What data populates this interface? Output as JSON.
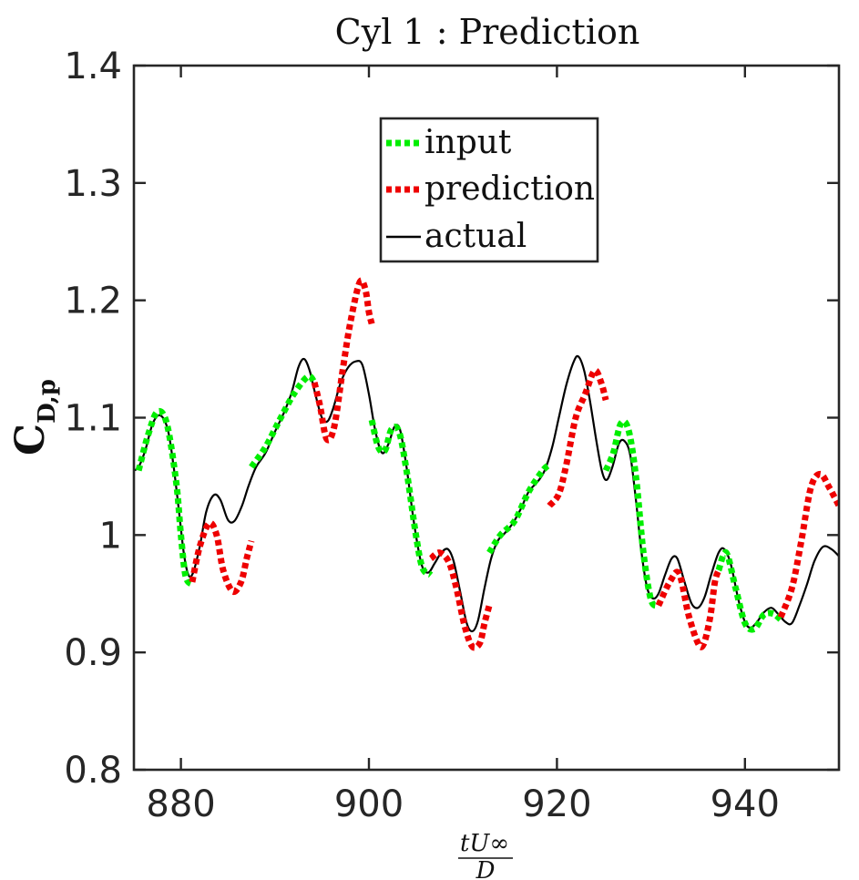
{
  "chart_data": {
    "type": "line",
    "title": "Cyl 1 : Prediction",
    "xlabel_numerator": "tU∞",
    "xlabel_denominator": "D",
    "ylabel_main": "C",
    "ylabel_sub": "D,p",
    "xlim": [
      875,
      950
    ],
    "ylim": [
      0.8,
      1.4
    ],
    "x_ticks": [
      880,
      900,
      920,
      940
    ],
    "x_tick_labels": [
      "880",
      "900",
      "920",
      "940"
    ],
    "y_ticks": [
      0.8,
      0.9,
      1.0,
      1.1,
      1.2,
      1.3,
      1.4
    ],
    "y_tick_labels": [
      "0.8",
      "0.9",
      "1",
      "1.1",
      "1.2",
      "1.3",
      "1.4"
    ],
    "legend_position": "top-center",
    "colors": {
      "input": "#00ee00",
      "prediction": "#ee0000",
      "actual": "#000000"
    },
    "series": [
      {
        "name": "input",
        "style": "dotted",
        "segments": [
          [
            [
              875.5,
              1.055
            ],
            [
              876.5,
              1.085
            ],
            [
              877.5,
              1.105
            ],
            [
              878.5,
              1.095
            ],
            [
              879.5,
              1.045
            ],
            [
              880,
              1.0
            ],
            [
              880.5,
              0.965
            ],
            [
              881.2,
              0.958
            ]
          ],
          [
            [
              887.5,
              1.058
            ],
            [
              889,
              1.075
            ],
            [
              890.5,
              1.098
            ],
            [
              892,
              1.12
            ],
            [
              893.5,
              1.135
            ],
            [
              894.2,
              1.13
            ]
          ],
          [
            [
              900.3,
              1.098
            ],
            [
              901,
              1.075
            ],
            [
              901.7,
              1.072
            ],
            [
              902.4,
              1.09
            ],
            [
              903.2,
              1.088
            ],
            [
              904,
              1.055
            ],
            [
              905,
              1.0
            ],
            [
              905.7,
              0.972
            ],
            [
              906.6,
              0.966
            ]
          ],
          [
            [
              912.8,
              0.985
            ],
            [
              914,
              1.0
            ],
            [
              915.5,
              1.012
            ],
            [
              917,
              1.037
            ],
            [
              918.5,
              1.055
            ],
            [
              919.2,
              1.06
            ]
          ],
          [
            [
              925.2,
              1.055
            ],
            [
              926,
              1.07
            ],
            [
              926.8,
              1.095
            ],
            [
              927.6,
              1.09
            ],
            [
              928.4,
              1.05
            ],
            [
              929.2,
              0.985
            ],
            [
              930,
              0.945
            ],
            [
              930.8,
              0.94
            ]
          ],
          [
            [
              937.2,
              0.97
            ],
            [
              938,
              0.985
            ],
            [
              939,
              0.955
            ],
            [
              940,
              0.925
            ],
            [
              941,
              0.92
            ],
            [
              942,
              0.932
            ],
            [
              943,
              0.933
            ],
            [
              943.8,
              0.928
            ]
          ]
        ]
      },
      {
        "name": "prediction",
        "style": "dotted",
        "segments": [
          [
            [
              881.2,
              0.96
            ],
            [
              882,
              0.99
            ],
            [
              883,
              1.01
            ],
            [
              883.8,
              1.0
            ],
            [
              884.5,
              0.97
            ],
            [
              885.5,
              0.952
            ],
            [
              886.4,
              0.96
            ],
            [
              887,
              0.98
            ],
            [
              887.5,
              0.995
            ]
          ],
          [
            [
              894.2,
              1.13
            ],
            [
              894.8,
              1.11
            ],
            [
              895.5,
              1.082
            ],
            [
              896.3,
              1.092
            ],
            [
              897.2,
              1.14
            ],
            [
              898,
              1.18
            ],
            [
              899,
              1.215
            ],
            [
              899.6,
              1.21
            ],
            [
              900,
              1.19
            ],
            [
              900.3,
              1.18
            ]
          ],
          [
            [
              906.6,
              0.98
            ],
            [
              907.5,
              0.985
            ],
            [
              908.5,
              0.977
            ],
            [
              909.3,
              0.955
            ],
            [
              910.2,
              0.922
            ],
            [
              911,
              0.905
            ],
            [
              911.8,
              0.908
            ],
            [
              912.3,
              0.925
            ],
            [
              912.8,
              0.94
            ]
          ],
          [
            [
              919.2,
              1.025
            ],
            [
              920.2,
              1.035
            ],
            [
              921,
              1.06
            ],
            [
              922,
              1.1
            ],
            [
              923,
              1.12
            ],
            [
              924,
              1.14
            ],
            [
              924.7,
              1.13
            ],
            [
              925.2,
              1.115
            ]
          ],
          [
            [
              930.8,
              0.94
            ],
            [
              932,
              0.96
            ],
            [
              933,
              0.967
            ],
            [
              934,
              0.932
            ],
            [
              935,
              0.908
            ],
            [
              935.6,
              0.907
            ],
            [
              936.3,
              0.93
            ],
            [
              936.8,
              0.96
            ],
            [
              937.2,
              0.97
            ]
          ],
          [
            [
              943.8,
              0.93
            ],
            [
              945,
              0.955
            ],
            [
              946,
              0.995
            ],
            [
              947,
              1.04
            ],
            [
              948,
              1.052
            ],
            [
              949,
              1.04
            ],
            [
              950,
              1.025
            ]
          ]
        ]
      },
      {
        "name": "actual",
        "style": "solid",
        "segments": [
          [
            [
              875,
              1.055
            ],
            [
              875.5,
              1.058
            ],
            [
              876.2,
              1.072
            ],
            [
              877,
              1.095
            ],
            [
              877.8,
              1.102
            ],
            [
              878.6,
              1.09
            ],
            [
              879.2,
              1.06
            ],
            [
              879.8,
              1.02
            ],
            [
              880.3,
              0.985
            ],
            [
              880.8,
              0.966
            ],
            [
              881.3,
              0.968
            ],
            [
              882,
              0.99
            ],
            [
              882.7,
              1.02
            ],
            [
              883.5,
              1.034
            ],
            [
              884.2,
              1.03
            ],
            [
              885,
              1.013
            ],
            [
              885.7,
              1.012
            ],
            [
              886.5,
              1.025
            ],
            [
              887.2,
              1.042
            ],
            [
              888,
              1.058
            ],
            [
              889,
              1.07
            ],
            [
              890,
              1.088
            ],
            [
              891,
              1.105
            ],
            [
              891.8,
              1.122
            ],
            [
              892.5,
              1.143
            ],
            [
              893.1,
              1.15
            ],
            [
              893.7,
              1.14
            ],
            [
              894.3,
              1.12
            ],
            [
              895,
              1.1
            ],
            [
              895.6,
              1.097
            ],
            [
              896.2,
              1.108
            ],
            [
              897,
              1.13
            ],
            [
              897.8,
              1.143
            ],
            [
              898.6,
              1.148
            ],
            [
              899.3,
              1.145
            ],
            [
              900,
              1.12
            ],
            [
              900.7,
              1.088
            ],
            [
              901.4,
              1.07
            ],
            [
              902.1,
              1.078
            ],
            [
              902.7,
              1.092
            ],
            [
              903.3,
              1.09
            ],
            [
              904,
              1.058
            ],
            [
              904.8,
              1.01
            ],
            [
              905.6,
              0.975
            ],
            [
              906.3,
              0.968
            ],
            [
              907,
              0.976
            ],
            [
              907.7,
              0.985
            ],
            [
              908.4,
              0.988
            ],
            [
              909,
              0.978
            ],
            [
              909.7,
              0.952
            ],
            [
              910.4,
              0.925
            ],
            [
              911,
              0.918
            ],
            [
              911.6,
              0.927
            ],
            [
              912.3,
              0.955
            ],
            [
              913,
              0.98
            ],
            [
              913.7,
              0.995
            ],
            [
              914.5,
              1.002
            ],
            [
              915.3,
              1.01
            ],
            [
              916.2,
              1.023
            ],
            [
              917,
              1.037
            ],
            [
              918,
              1.046
            ],
            [
              918.7,
              1.055
            ],
            [
              919.5,
              1.075
            ],
            [
              920.2,
              1.1
            ],
            [
              921,
              1.128
            ],
            [
              921.8,
              1.148
            ],
            [
              922.3,
              1.152
            ],
            [
              922.9,
              1.14
            ],
            [
              923.5,
              1.115
            ],
            [
              924.2,
              1.08
            ],
            [
              924.8,
              1.054
            ],
            [
              925.3,
              1.047
            ],
            [
              925.9,
              1.058
            ],
            [
              926.6,
              1.078
            ],
            [
              927.2,
              1.08
            ],
            [
              927.8,
              1.068
            ],
            [
              928.4,
              1.03
            ],
            [
              929,
              0.985
            ],
            [
              929.6,
              0.955
            ],
            [
              930.2,
              0.946
            ],
            [
              930.8,
              0.95
            ],
            [
              931.5,
              0.966
            ],
            [
              932.2,
              0.98
            ],
            [
              932.8,
              0.98
            ],
            [
              933.5,
              0.962
            ],
            [
              934.3,
              0.942
            ],
            [
              935,
              0.938
            ],
            [
              935.7,
              0.947
            ],
            [
              936.4,
              0.966
            ],
            [
              937.2,
              0.985
            ],
            [
              937.8,
              0.988
            ],
            [
              938.5,
              0.975
            ],
            [
              939.3,
              0.945
            ],
            [
              940,
              0.926
            ],
            [
              940.6,
              0.921
            ],
            [
              941.3,
              0.926
            ],
            [
              942,
              0.934
            ],
            [
              942.8,
              0.938
            ],
            [
              943.5,
              0.933
            ],
            [
              944.3,
              0.926
            ],
            [
              945,
              0.925
            ],
            [
              945.8,
              0.94
            ],
            [
              946.6,
              0.958
            ],
            [
              947.4,
              0.978
            ],
            [
              948.3,
              0.99
            ],
            [
              949.2,
              0.988
            ],
            [
              950,
              0.982
            ]
          ]
        ]
      }
    ]
  }
}
